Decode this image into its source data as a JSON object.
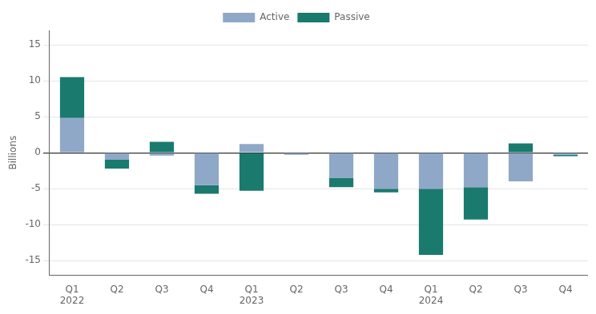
{
  "chart_data": {
    "type": "bar",
    "stacked": true,
    "ylabel": "Billions",
    "categories": [
      "Q1\n2022",
      "Q2",
      "Q3",
      "Q4",
      "Q1\n2023",
      "Q2",
      "Q3",
      "Q4",
      "Q1\n2024",
      "Q2",
      "Q3",
      "Q4"
    ],
    "series": [
      {
        "name": "Active",
        "color": "#8fa8c8",
        "values": [
          4.8,
          -1.0,
          -0.4,
          -4.5,
          1.2,
          -0.3,
          -3.5,
          -5.0,
          -5.0,
          -4.8,
          -4.0,
          -0.3
        ]
      },
      {
        "name": "Passive",
        "color": "#1a7a6e",
        "values": [
          5.7,
          -1.2,
          1.5,
          -1.2,
          -5.3,
          0.0,
          -1.3,
          -0.5,
          -9.2,
          -4.5,
          1.3,
          -0.2
        ]
      }
    ],
    "ylim": [
      -17,
      17
    ],
    "yticks": [
      -15,
      -10,
      -5,
      0,
      5,
      10,
      15
    ],
    "grid": true,
    "legend": "top"
  }
}
